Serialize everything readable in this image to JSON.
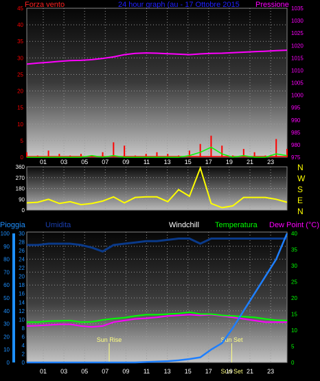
{
  "header": {
    "left_title": "Forza vento",
    "center_title": "24 hour graph (au - 17 Ottobre 2015",
    "right_title": "Pressione"
  },
  "hours": [
    "01",
    "03",
    "05",
    "07",
    "09",
    "11",
    "13",
    "15",
    "17",
    "19",
    "21",
    "23"
  ],
  "colors": {
    "wind_label": "#ff2020",
    "center_title": "#2020ff",
    "pressure": "#ff00ff",
    "gust": "#ff0000",
    "wind_avg": "#00ff00",
    "direction": "#ffff00",
    "compass": "#ffff00",
    "rain_axis": "#1e90ff",
    "humidity_label": "#1a3fb0",
    "humidity": "#0a3a8a",
    "temp": "#00ff00",
    "dew": "#ff00ff",
    "rain": "#1e7fff",
    "sun": "#ffff80",
    "windchill": "#ffffff",
    "dew_label": "#ff00ff"
  },
  "compass": [
    "N",
    "W",
    "S",
    "E",
    "N"
  ],
  "sun": {
    "rise_label": "Sun Rise",
    "set_label": "Sun Set"
  },
  "chart_data": [
    {
      "type": "line",
      "title": "24 hour graph (au - 17 Ottobre 2015",
      "ylabel_left": "Forza vento",
      "ylabel_right": "Pressione",
      "ylim_left": [
        0,
        45
      ],
      "ylim_right": [
        975,
        1035
      ],
      "yticks_left": [
        0,
        5,
        10,
        15,
        20,
        25,
        30,
        35,
        40,
        45
      ],
      "yticks_right": [
        975,
        980,
        985,
        990,
        995,
        1000,
        1005,
        1010,
        1015,
        1020,
        1025,
        1030,
        1035
      ],
      "x_hours": [
        0,
        1,
        2,
        3,
        4,
        5,
        6,
        7,
        8,
        9,
        10,
        11,
        12,
        13,
        14,
        15,
        16,
        17,
        18,
        19,
        20,
        21,
        22,
        23,
        24
      ],
      "series": [
        {
          "name": "Pressione",
          "axis": "right",
          "values": [
            1012.5,
            1012.9,
            1013.2,
            1013.6,
            1013.9,
            1014.0,
            1014.3,
            1014.8,
            1015.4,
            1016.3,
            1016.8,
            1017.0,
            1016.9,
            1016.7,
            1016.5,
            1016.3,
            1016.6,
            1016.8,
            1016.9,
            1017.1,
            1017.3,
            1017.5,
            1017.7,
            1017.9,
            1018.1
          ]
        },
        {
          "name": "Forza vento",
          "axis": "left",
          "values": [
            1.5,
            0.5,
            2.0,
            1.0,
            0.5,
            1.0,
            0.5,
            1.5,
            4.5,
            3.5,
            0.5,
            1.0,
            1.5,
            1.0,
            0.5,
            2.0,
            4.0,
            6.5,
            3.5,
            0.5,
            2.5,
            1.5,
            0.5,
            5.5,
            2.5
          ]
        },
        {
          "name": "wind average",
          "axis": "left",
          "values": [
            0,
            0,
            0,
            0,
            0,
            0,
            0.5,
            0,
            0.5,
            0,
            0,
            0,
            0,
            0,
            0,
            0.5,
            1.5,
            3.0,
            1.0,
            0,
            0.5,
            0,
            0,
            1.0,
            0.5
          ]
        }
      ]
    },
    {
      "type": "line",
      "title": "",
      "ylim": [
        0,
        360
      ],
      "yticks": [
        0,
        90,
        180,
        270,
        360
      ],
      "x_hours": [
        0,
        1,
        2,
        3,
        4,
        5,
        6,
        7,
        8,
        9,
        10,
        11,
        12,
        13,
        14,
        15,
        16,
        17,
        18,
        19,
        20,
        21,
        22,
        23,
        24
      ],
      "series": [
        {
          "name": "direction",
          "values": [
            60,
            65,
            90,
            55,
            70,
            45,
            55,
            75,
            110,
            60,
            105,
            110,
            110,
            70,
            170,
            115,
            350,
            55,
            20,
            35,
            105,
            105,
            105,
            90,
            65
          ]
        }
      ]
    },
    {
      "type": "line",
      "title": "",
      "ylabel_left": "Pioggia",
      "ylabel_left2": "Umidita",
      "ylabel_right": "Dew Point (°C)",
      "legend": [
        "Windchill",
        "Temperatura",
        "Dew Point (°C)"
      ],
      "ylim_humidity": [
        0,
        100
      ],
      "ylim_rain": [
        0,
        30
      ],
      "ylim_temp": [
        0,
        40
      ],
      "yticks_humidity": [
        0,
        10,
        20,
        30,
        40,
        50,
        60,
        70,
        80,
        90,
        100
      ],
      "yticks_rain": [
        0,
        2,
        4,
        6,
        8,
        10,
        12,
        14,
        16,
        18,
        20,
        22,
        24,
        26,
        28,
        30
      ],
      "yticks_temp": [
        0,
        5,
        10,
        15,
        20,
        25,
        30,
        35,
        40
      ],
      "x_hours": [
        0,
        1,
        2,
        3,
        4,
        5,
        6,
        7,
        8,
        9,
        10,
        11,
        12,
        13,
        14,
        15,
        16,
        17,
        18,
        19,
        20,
        21,
        22,
        23,
        24
      ],
      "sunrise_hour": 7.6,
      "sunset_hour": 18.9,
      "series": [
        {
          "name": "Umidita",
          "axis": "humidity",
          "values": [
            91,
            91,
            92,
            92,
            92,
            91,
            89,
            86,
            91,
            92,
            93,
            94,
            94,
            95,
            96,
            96,
            92,
            96,
            96,
            96,
            96,
            96,
            96,
            96,
            96
          ]
        },
        {
          "name": "Pioggia",
          "axis": "rain",
          "values": [
            0,
            0,
            0,
            0,
            0,
            0,
            0,
            0,
            0,
            0,
            0,
            0.1,
            0.2,
            0.3,
            0.5,
            0.8,
            1.2,
            3.0,
            4.5,
            8.0,
            12.0,
            16.0,
            20.0,
            24.0,
            30.0
          ]
        },
        {
          "name": "Temperatura",
          "axis": "temp",
          "values": [
            12.5,
            12.5,
            12.8,
            12.9,
            13.0,
            12.5,
            12.6,
            13.2,
            13.6,
            13.9,
            14.4,
            14.8,
            14.8,
            15.0,
            15.2,
            15.6,
            15.0,
            15.0,
            14.6,
            14.4,
            14.2,
            14.0,
            13.5,
            13.1,
            13.0
          ]
        },
        {
          "name": "Dew Point (°C)",
          "axis": "temp",
          "values": [
            11.3,
            11.4,
            11.6,
            11.8,
            11.8,
            11.3,
            11.0,
            11.3,
            12.5,
            13.0,
            13.5,
            13.7,
            14.0,
            14.4,
            14.6,
            14.8,
            14.6,
            14.8,
            14.4,
            14.0,
            13.5,
            13.0,
            12.5,
            12.5,
            12.5
          ]
        }
      ]
    }
  ]
}
